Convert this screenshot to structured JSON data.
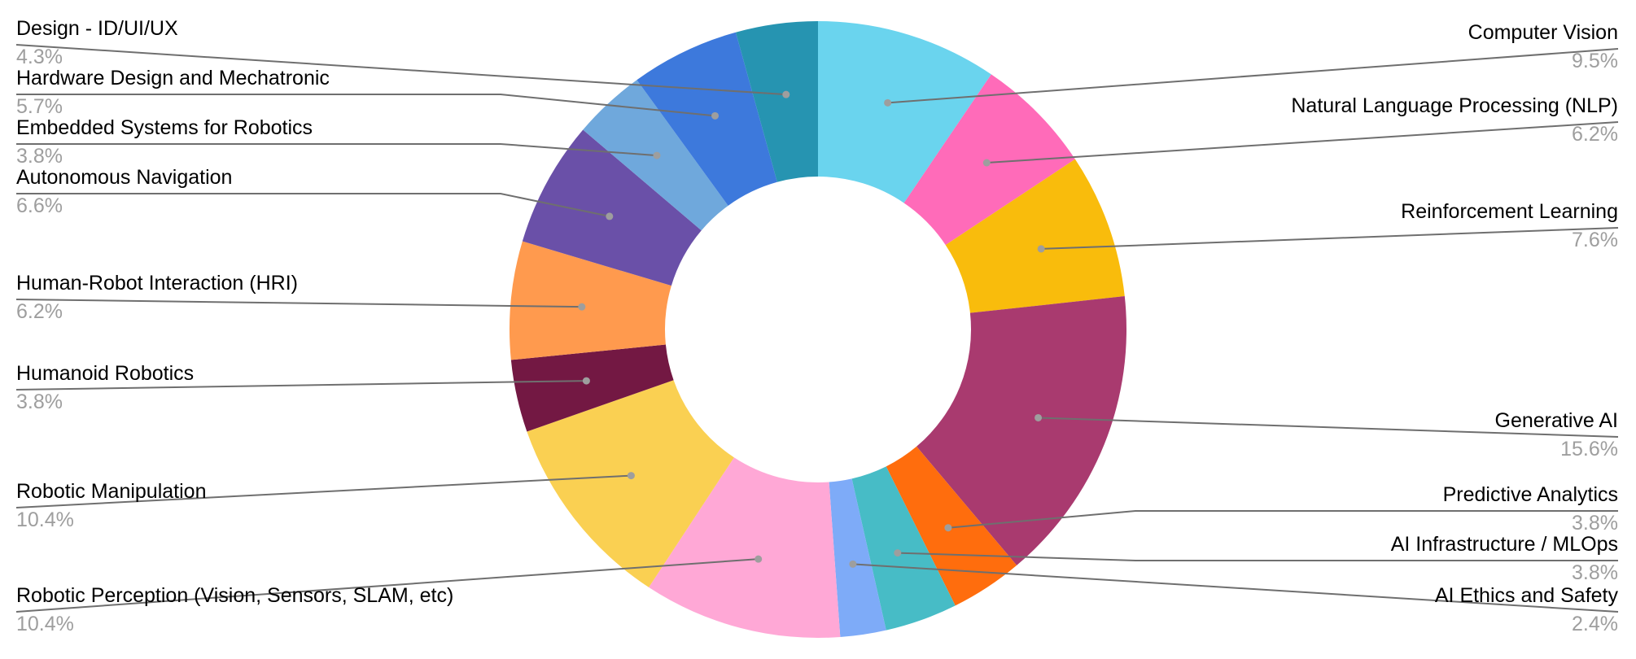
{
  "chart_data": {
    "type": "pie",
    "donut": true,
    "title": "",
    "slices": [
      {
        "label": "Computer Vision",
        "percent_label": "9.5%",
        "value": 9.5,
        "color": "#6ad4ee"
      },
      {
        "label": "Natural Language Processing (NLP)",
        "percent_label": "6.2%",
        "value": 6.2,
        "color": "#ff6bb9"
      },
      {
        "label": "Reinforcement Learning",
        "percent_label": "7.6%",
        "value": 7.6,
        "color": "#f9bc0c"
      },
      {
        "label": "Generative AI",
        "percent_label": "15.6%",
        "value": 15.6,
        "color": "#a93a6f"
      },
      {
        "label": "Predictive Analytics",
        "percent_label": "3.8%",
        "value": 3.8,
        "color": "#ff6d0d"
      },
      {
        "label": "AI Infrastructure / MLOps",
        "percent_label": "3.8%",
        "value": 3.8,
        "color": "#47bcc6"
      },
      {
        "label": "AI Ethics and Safety",
        "percent_label": "2.4%",
        "value": 2.4,
        "color": "#7eabf8"
      },
      {
        "label": "Robotic Perception (Vision, Sensors, SLAM, etc)",
        "percent_label": "10.4%",
        "value": 10.4,
        "color": "#ffa8d6"
      },
      {
        "label": "Robotic Manipulation",
        "percent_label": "10.4%",
        "value": 10.4,
        "color": "#fad052"
      },
      {
        "label": "Humanoid Robotics",
        "percent_label": "3.8%",
        "value": 3.8,
        "color": "#731843"
      },
      {
        "label": "Human-Robot Interaction (HRI)",
        "percent_label": "6.2%",
        "value": 6.2,
        "color": "#ff9a4e"
      },
      {
        "label": "Autonomous Navigation",
        "percent_label": "6.6%",
        "value": 6.6,
        "color": "#6a50a8"
      },
      {
        "label": "Embedded Systems for Robotics",
        "percent_label": "3.8%",
        "value": 3.8,
        "color": "#6fa8dc"
      },
      {
        "label": "Hardware Design and Mechatronic",
        "percent_label": "5.7%",
        "value": 5.7,
        "color": "#3d79dc"
      },
      {
        "label": "Design - ID/UI/UX",
        "percent_label": "4.3%",
        "value": 4.3,
        "color": "#2694b1"
      }
    ],
    "legend": "none",
    "labels": "outside with leader lines"
  }
}
